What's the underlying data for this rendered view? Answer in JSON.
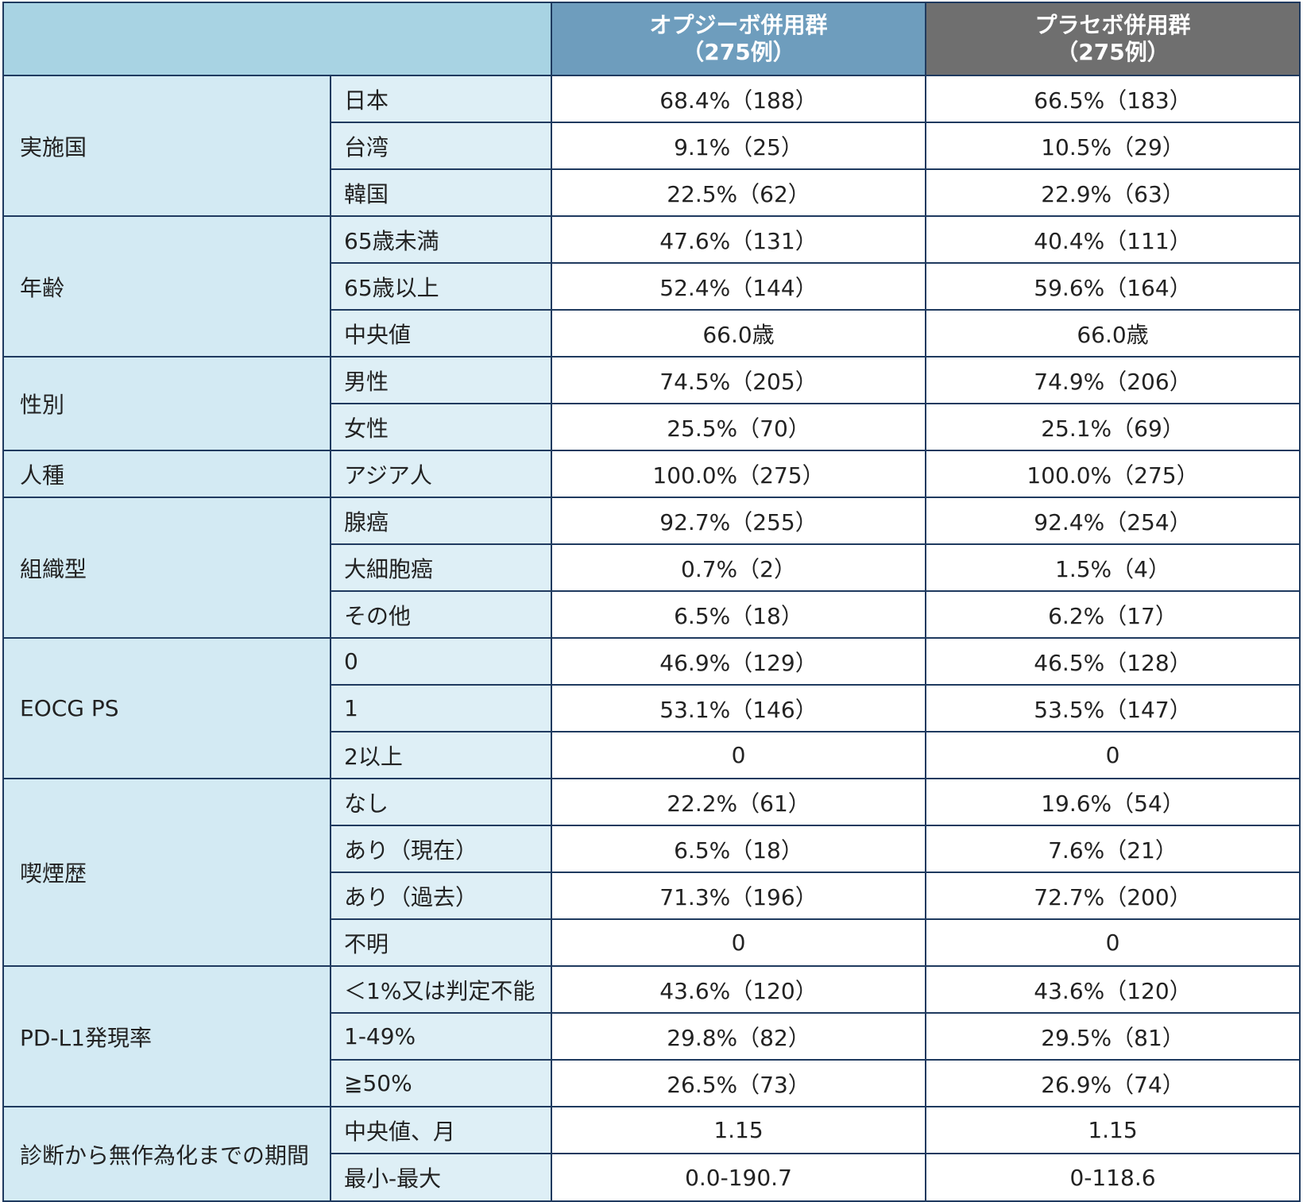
{
  "header": {
    "corner": "",
    "group_a": [
      "オプジーボ併用群",
      "（275例）"
    ],
    "group_b": [
      "プラセボ併用群",
      "（275例）"
    ]
  },
  "categories": [
    {
      "name": "実施国",
      "rows": [
        {
          "label": "日本",
          "a": "68.4%（188）",
          "b": "66.5%（183）"
        },
        {
          "label": "台湾",
          "a": "9.1%（25）",
          "b": "10.5%（29）"
        },
        {
          "label": "韓国",
          "a": "22.5%（62）",
          "b": "22.9%（63）"
        }
      ]
    },
    {
      "name": "年齢",
      "rows": [
        {
          "label": "65歳未満",
          "a": "47.6%（131）",
          "b": "40.4%（111）"
        },
        {
          "label": "65歳以上",
          "a": "52.4%（144）",
          "b": "59.6%（164）"
        },
        {
          "label": "中央値",
          "a": "66.0歳",
          "b": "66.0歳"
        }
      ]
    },
    {
      "name": "性別",
      "rows": [
        {
          "label": "男性",
          "a": "74.5%（205）",
          "b": "74.9%（206）"
        },
        {
          "label": "女性",
          "a": "25.5%（70）",
          "b": "25.1%（69）"
        }
      ]
    },
    {
      "name": "人種",
      "rows": [
        {
          "label": "アジア人",
          "a": "100.0%（275）",
          "b": "100.0%（275）"
        }
      ]
    },
    {
      "name": "組織型",
      "rows": [
        {
          "label": "腺癌",
          "a": "92.7%（255）",
          "b": "92.4%（254）"
        },
        {
          "label": "大細胞癌",
          "a": "0.7%（2）",
          "b": "1.5%（4）"
        },
        {
          "label": "その他",
          "a": "6.5%（18）",
          "b": "6.2%（17）"
        }
      ]
    },
    {
      "name": "EOCG PS",
      "rows": [
        {
          "label": "0",
          "a": "46.9%（129）",
          "b": "46.5%（128）"
        },
        {
          "label": "1",
          "a": "53.1%（146）",
          "b": "53.5%（147）"
        },
        {
          "label": "2以上",
          "a": "0",
          "b": "0"
        }
      ]
    },
    {
      "name": "喫煙歴",
      "rows": [
        {
          "label": "なし",
          "a": "22.2%（61）",
          "b": "19.6%（54）"
        },
        {
          "label": "あり（現在）",
          "a": "6.5%（18）",
          "b": "7.6%（21）"
        },
        {
          "label": "あり（過去）",
          "a": "71.3%（196）",
          "b": "72.7%（200）"
        },
        {
          "label": "不明",
          "a": "0",
          "b": "0"
        }
      ]
    },
    {
      "name": "PD-L1発現率",
      "rows": [
        {
          "label": "＜1%又は判定不能",
          "a": "43.6%（120）",
          "b": "43.6%（120）"
        },
        {
          "label": "1-49%",
          "a": "29.8%（82）",
          "b": "29.5%（81）"
        },
        {
          "label": "≧50%",
          "a": "26.5%（73）",
          "b": "26.9%（74）"
        }
      ]
    },
    {
      "name": "診断から無作為化までの期間",
      "rows": [
        {
          "label": "中央値、月",
          "a": "1.15",
          "b": "1.15"
        },
        {
          "label": "最小-最大",
          "a": "0.0-190.7",
          "b": "0-118.6"
        }
      ]
    }
  ]
}
